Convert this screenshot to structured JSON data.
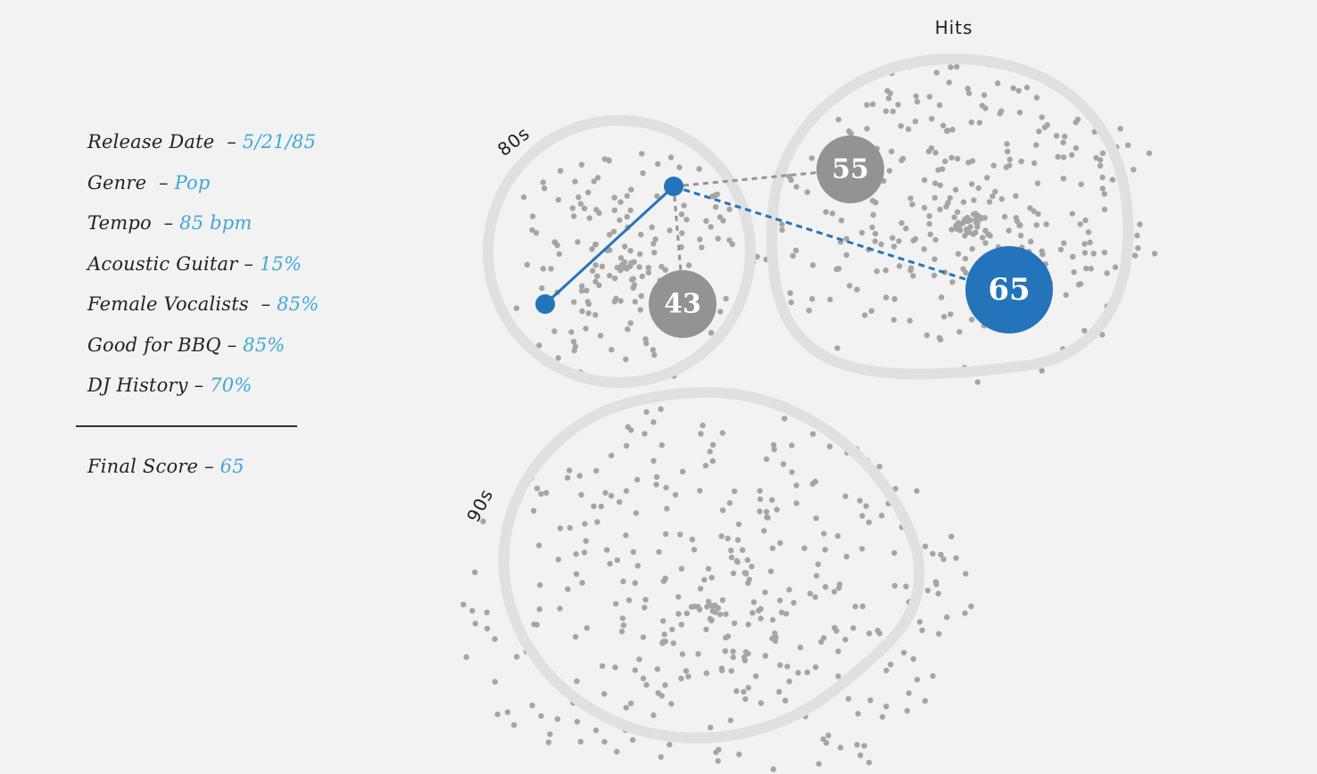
{
  "attributes": [
    {
      "label": "Release Date",
      "sep": "–",
      "value": "5/21/85"
    },
    {
      "label": "Genre",
      "sep": "–",
      "value": "Pop"
    },
    {
      "label": "Tempo",
      "sep": "–",
      "value": "85 bpm"
    },
    {
      "label": "Acoustic Guitar",
      "sep": "–",
      "value": "15%"
    },
    {
      "label": "Female Vocalists",
      "sep": "–",
      "value": "85%"
    },
    {
      "label": "Good for BBQ",
      "sep": "–",
      "value": "85%"
    },
    {
      "label": "DJ History",
      "sep": "–",
      "value": "70%"
    }
  ],
  "final": {
    "label": "Final Score",
    "sep": "–",
    "value": "65"
  },
  "regions": {
    "eighties": "80s",
    "nineties": "90s",
    "hits": "Hits"
  },
  "nodes": {
    "n43": "43",
    "n55": "55",
    "n65": "65"
  },
  "colors": {
    "accent": "#2474bb",
    "value_text": "#3ea8d8",
    "node_gray": "#939396",
    "dot": "#a5a5a5",
    "region_outline": "#e0e0e0",
    "background": "#f2f2f2"
  }
}
